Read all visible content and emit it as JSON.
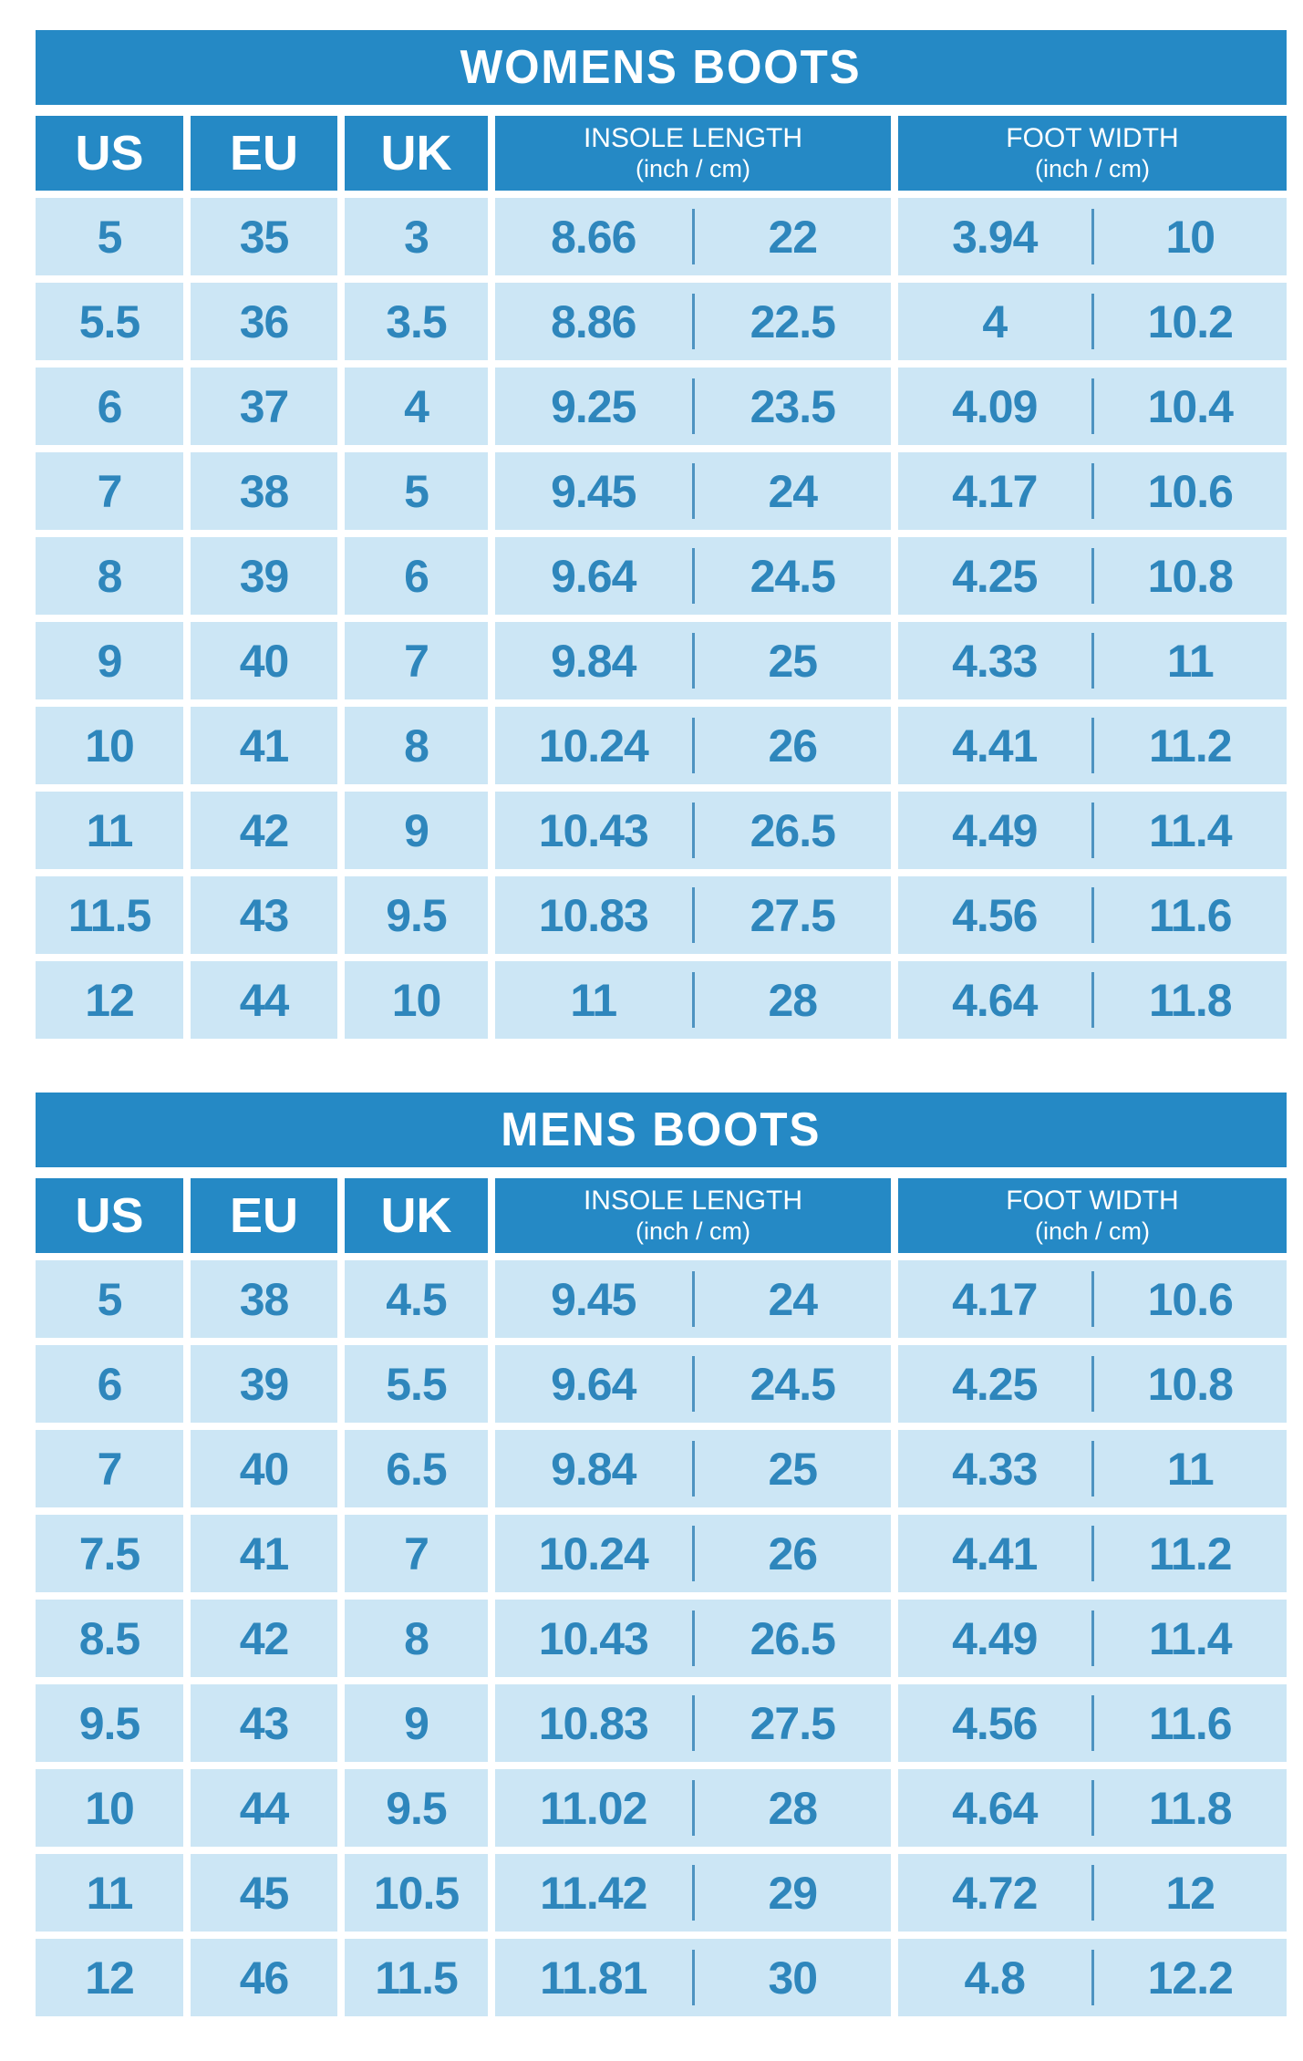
{
  "colors": {
    "background": "#ffffff",
    "banner": "#2589c5",
    "row_bg": "#cce6f5",
    "value_text": "#2e86bc",
    "divider": "#4d93c1",
    "header_text": "#ffffff"
  },
  "chart_data": [
    {
      "type": "table",
      "title": "WOMENS BOOTS",
      "columns": [
        "US",
        "EU",
        "UK",
        "INSOLE LENGTH (inch / cm)",
        "FOOT WIDTH (inch / cm)"
      ],
      "header": {
        "us": "US",
        "eu": "EU",
        "uk": "UK",
        "insole_line1": "INSOLE LENGTH",
        "insole_line2": "(inch / cm)",
        "foot_line1": "FOOT WIDTH",
        "foot_line2": "(inch / cm)"
      },
      "rows": [
        [
          "5",
          "35",
          "3",
          "8.66",
          "22",
          "3.94",
          "10"
        ],
        [
          "5.5",
          "36",
          "3.5",
          "8.86",
          "22.5",
          "4",
          "10.2"
        ],
        [
          "6",
          "37",
          "4",
          "9.25",
          "23.5",
          "4.09",
          "10.4"
        ],
        [
          "7",
          "38",
          "5",
          "9.45",
          "24",
          "4.17",
          "10.6"
        ],
        [
          "8",
          "39",
          "6",
          "9.64",
          "24.5",
          "4.25",
          "10.8"
        ],
        [
          "9",
          "40",
          "7",
          "9.84",
          "25",
          "4.33",
          "11"
        ],
        [
          "10",
          "41",
          "8",
          "10.24",
          "26",
          "4.41",
          "11.2"
        ],
        [
          "11",
          "42",
          "9",
          "10.43",
          "26.5",
          "4.49",
          "11.4"
        ],
        [
          "11.5",
          "43",
          "9.5",
          "10.83",
          "27.5",
          "4.56",
          "11.6"
        ],
        [
          "12",
          "44",
          "10",
          "11",
          "28",
          "4.64",
          "11.8"
        ]
      ]
    },
    {
      "type": "table",
      "title": "MENS BOOTS",
      "columns": [
        "US",
        "EU",
        "UK",
        "INSOLE LENGTH (inch / cm)",
        "FOOT WIDTH (inch / cm)"
      ],
      "header": {
        "us": "US",
        "eu": "EU",
        "uk": "UK",
        "insole_line1": "INSOLE LENGTH",
        "insole_line2": "(inch / cm)",
        "foot_line1": "FOOT WIDTH",
        "foot_line2": "(inch / cm)"
      },
      "rows": [
        [
          "5",
          "38",
          "4.5",
          "9.45",
          "24",
          "4.17",
          "10.6"
        ],
        [
          "6",
          "39",
          "5.5",
          "9.64",
          "24.5",
          "4.25",
          "10.8"
        ],
        [
          "7",
          "40",
          "6.5",
          "9.84",
          "25",
          "4.33",
          "11"
        ],
        [
          "7.5",
          "41",
          "7",
          "10.24",
          "26",
          "4.41",
          "11.2"
        ],
        [
          "8.5",
          "42",
          "8",
          "10.43",
          "26.5",
          "4.49",
          "11.4"
        ],
        [
          "9.5",
          "43",
          "9",
          "10.83",
          "27.5",
          "4.56",
          "11.6"
        ],
        [
          "10",
          "44",
          "9.5",
          "11.02",
          "28",
          "4.64",
          "11.8"
        ],
        [
          "11",
          "45",
          "10.5",
          "11.42",
          "29",
          "4.72",
          "12"
        ],
        [
          "12",
          "46",
          "11.5",
          "11.81",
          "30",
          "4.8",
          "12.2"
        ]
      ]
    }
  ]
}
